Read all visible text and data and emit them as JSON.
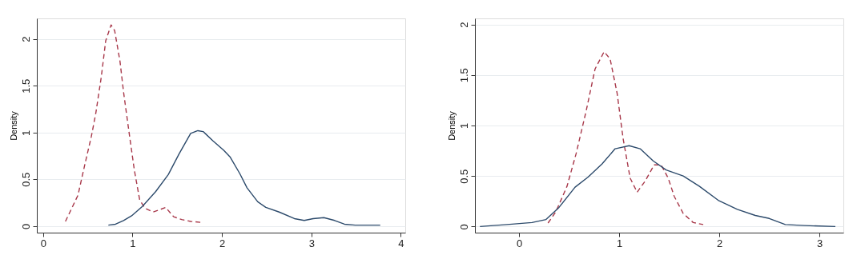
{
  "chart_data": [
    {
      "type": "line",
      "ylabel": "Density",
      "xlim": [
        -0.07,
        4.05
      ],
      "ylim": [
        -0.07,
        2.22
      ],
      "xticks": [
        0,
        1,
        2,
        3,
        4
      ],
      "yticks": [
        0,
        0.5,
        1,
        1.5,
        2
      ],
      "grid": "y",
      "marker": "none",
      "series": [
        {
          "color": "#a8384a",
          "line_style": "dashed",
          "x": [
            0.25,
            0.33,
            0.39,
            0.46,
            0.54,
            0.59,
            0.65,
            0.7,
            0.76,
            0.8,
            0.86,
            0.9,
            0.96,
            1.02,
            1.08,
            1.14,
            1.23,
            1.29,
            1.37,
            1.46,
            1.55,
            1.65,
            1.76
          ],
          "values": [
            0.05,
            0.21,
            0.33,
            0.63,
            0.96,
            1.21,
            1.59,
            1.98,
            2.15,
            2.09,
            1.76,
            1.43,
            1.01,
            0.6,
            0.28,
            0.19,
            0.15,
            0.17,
            0.2,
            0.1,
            0.07,
            0.05,
            0.04
          ]
        },
        {
          "color": "#2c4a6b",
          "line_style": "solid",
          "x": [
            0.73,
            0.81,
            0.9,
            0.99,
            1.11,
            1.26,
            1.4,
            1.52,
            1.65,
            1.73,
            1.79,
            1.9,
            2.02,
            2.09,
            2.2,
            2.28,
            2.4,
            2.49,
            2.64,
            2.81,
            2.92,
            3.02,
            3.14,
            3.26,
            3.37,
            3.49,
            3.64,
            3.77
          ],
          "values": [
            0.01,
            0.02,
            0.06,
            0.11,
            0.21,
            0.37,
            0.55,
            0.77,
            0.99,
            1.02,
            1.01,
            0.91,
            0.81,
            0.74,
            0.56,
            0.41,
            0.26,
            0.2,
            0.15,
            0.08,
            0.06,
            0.08,
            0.09,
            0.06,
            0.02,
            0.01,
            0.01,
            0.01
          ]
        }
      ]
    },
    {
      "type": "line",
      "ylabel": "Density",
      "xlim": [
        -0.44,
        3.24
      ],
      "ylim": [
        -0.06,
        2.06
      ],
      "xticks": [
        0,
        1,
        2,
        3
      ],
      "yticks": [
        0,
        0.5,
        1,
        1.5,
        2
      ],
      "grid": "y",
      "marker": "none",
      "series": [
        {
          "color": "#a8384a",
          "line_style": "dashed",
          "x": [
            0.29,
            0.37,
            0.48,
            0.57,
            0.67,
            0.76,
            0.85,
            0.91,
            0.98,
            1.04,
            1.11,
            1.18,
            1.26,
            1.35,
            1.42,
            1.49,
            1.55,
            1.64,
            1.74,
            1.84
          ],
          "values": [
            0.035,
            0.15,
            0.4,
            0.72,
            1.14,
            1.56,
            1.73,
            1.66,
            1.32,
            0.87,
            0.48,
            0.34,
            0.45,
            0.61,
            0.61,
            0.48,
            0.3,
            0.13,
            0.04,
            0.02
          ]
        },
        {
          "color": "#2c4a6b",
          "line_style": "solid",
          "x": [
            -0.39,
            -0.12,
            0.13,
            0.27,
            0.4,
            0.56,
            0.69,
            0.83,
            0.96,
            1.1,
            1.21,
            1.34,
            1.47,
            1.64,
            1.8,
            1.99,
            2.18,
            2.36,
            2.5,
            2.66,
            2.85,
            3.16
          ],
          "values": [
            0.0,
            0.02,
            0.04,
            0.07,
            0.19,
            0.39,
            0.49,
            0.62,
            0.77,
            0.8,
            0.77,
            0.65,
            0.56,
            0.5,
            0.4,
            0.26,
            0.17,
            0.11,
            0.08,
            0.02,
            0.01,
            0.0
          ]
        }
      ]
    }
  ]
}
